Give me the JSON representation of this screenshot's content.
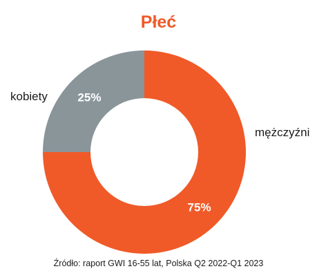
{
  "chart_data": {
    "type": "pie",
    "title": "Płeć",
    "categories": [
      "mężczyźni",
      "kobiety"
    ],
    "values": [
      75,
      25
    ],
    "data_labels": [
      "75%",
      "25%"
    ],
    "colors": [
      "#f05a28",
      "#8a959a"
    ],
    "title_color": "#f05a28"
  },
  "source": "Źródło: raport GWI 16-55 lat, Polska Q2 2022-Q1 2023"
}
